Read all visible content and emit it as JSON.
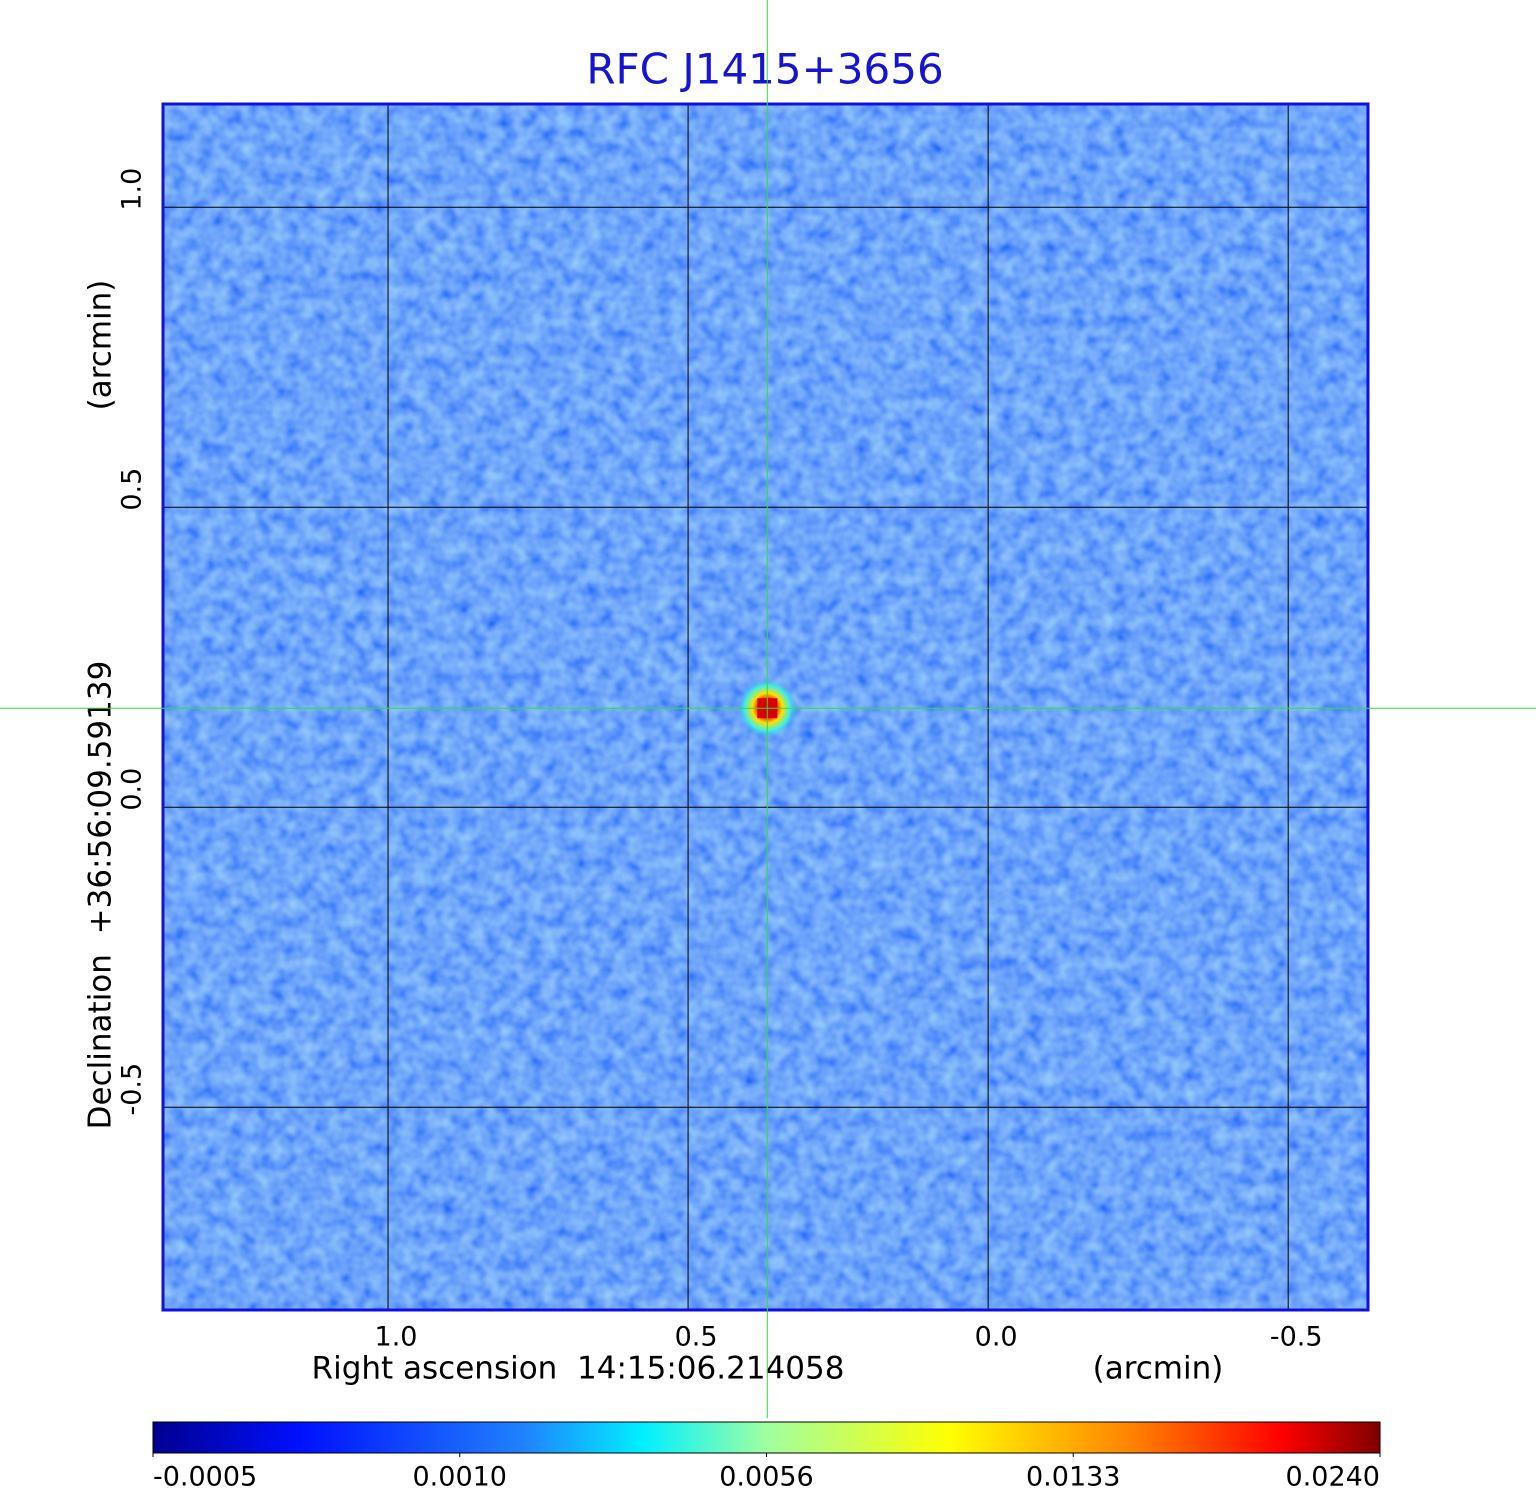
{
  "chart_data": {
    "type": "image",
    "title": "RFC J1415+3656",
    "xlabel": "Right ascension  14:15:06.214058",
    "xunit": "(arcmin)",
    "ylabel": "Declination  +36:56:09.59139",
    "yunit": "(arcmin)",
    "xlim": [
      1.375,
      -0.633
    ],
    "ylim": [
      -0.838,
      1.172
    ],
    "xticks": [
      {
        "value": 1,
        "label": "1.0"
      },
      0.5,
      {
        "value": 0,
        "label": "0.0"
      },
      -0.5
    ],
    "yticks": [
      {
        "value": 1,
        "label": "1.0"
      },
      0.5,
      {
        "value": 0,
        "label": "0.0"
      },
      -0.5
    ],
    "grid": true,
    "crosshair": {
      "x": 0.368,
      "y": 0.165
    },
    "colormap": "jet",
    "colorbar_ticks": [
      -0.0005,
      {
        "value": 0.001,
        "label": "0.0010"
      },
      0.0056,
      0.0133,
      {
        "value": 0.024,
        "label": "0.0240"
      }
    ]
  }
}
